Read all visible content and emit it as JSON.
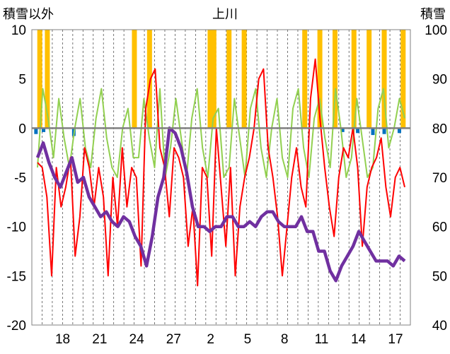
{
  "chart_data": {
    "type": "line",
    "title": "上川",
    "left_axis_label": "積雪以外",
    "right_axis_label": "積雪",
    "left_ylim": [
      -20,
      10
    ],
    "left_yticks": [
      "10",
      "5",
      "0",
      "-5",
      "-10",
      "-15",
      "-20"
    ],
    "right_ylim": [
      40,
      100
    ],
    "right_yticks": [
      "100",
      "90",
      "80",
      "70",
      "60",
      "50",
      "40"
    ],
    "x_tick_labels": [
      "18",
      "21",
      "24",
      "27",
      "2",
      "5",
      "8",
      "11",
      "14",
      "17"
    ],
    "x_tick_index": [
      2,
      5,
      8,
      11,
      14,
      17,
      20,
      23,
      26,
      29
    ],
    "grid": "dashed vertical daily lines, solid zero line",
    "series": [
      {
        "color": "#ff0000",
        "axis": "left",
        "values": [
          -3.5,
          -4,
          -7,
          -15,
          -4,
          -8,
          -6,
          -3,
          -13,
          -9,
          -2,
          -4,
          -8,
          -4,
          -7,
          -15,
          -5,
          -10,
          -2,
          -8,
          -4,
          -5,
          -14,
          2,
          5,
          6,
          -2,
          -4,
          -9,
          -2,
          -3,
          -5,
          -12,
          -8,
          -16,
          -4,
          -5,
          -13,
          0,
          -6,
          -12,
          -4,
          -15,
          -8,
          -5,
          -3,
          0,
          5,
          6,
          -2,
          -5,
          -9,
          -15,
          -10,
          -5,
          -2,
          -6,
          -8,
          3,
          7,
          1,
          -4,
          -8,
          -11,
          -5,
          -2,
          -3,
          0,
          -4,
          -12,
          -6,
          -4,
          -3,
          -1,
          -6,
          -9,
          -5,
          -4,
          -6
        ]
      },
      {
        "color": "#92d050",
        "axis": "left",
        "values": [
          -4,
          4,
          1,
          -3,
          3,
          -1,
          -4,
          0,
          3,
          -2,
          -4,
          1,
          4,
          -1,
          -4,
          -5,
          0,
          2,
          -3,
          -3,
          3,
          -1,
          -4,
          4,
          -5,
          -2,
          3,
          -1,
          -5,
          1,
          4,
          -2,
          -5,
          1,
          2,
          -5,
          -4,
          3,
          -1,
          -5,
          2,
          4,
          -2,
          -5,
          0,
          3,
          -3,
          -5,
          2,
          4,
          -2,
          -5,
          1,
          3,
          -1,
          -4,
          4,
          0,
          -5,
          -3,
          3,
          -1,
          -5,
          -4,
          2,
          4,
          -2,
          0,
          3,
          1
        ]
      },
      {
        "color": "#7030a0",
        "axis": "right",
        "values": [
          74,
          77,
          73,
          70,
          68,
          71,
          74,
          69,
          70,
          66,
          64,
          62,
          63,
          61,
          60,
          62,
          61,
          58,
          56,
          52,
          58,
          66,
          70,
          80,
          79,
          76,
          71,
          64,
          60,
          60,
          59,
          60,
          60,
          62,
          62,
          60,
          60,
          61,
          60,
          62,
          63,
          63,
          61,
          60,
          60,
          60,
          62,
          59,
          59,
          55,
          55,
          51,
          49,
          52,
          54,
          56,
          59,
          57,
          55,
          53,
          53,
          53,
          52,
          54,
          53
        ]
      }
    ],
    "snow_accum_color": "#ffc000",
    "snow_accum_bars": [
      [
        0.02,
        10
      ],
      [
        0.04,
        10
      ],
      [
        0.27,
        10
      ],
      [
        0.31,
        10
      ],
      [
        0.47,
        10
      ],
      [
        0.48,
        10
      ],
      [
        0.52,
        10
      ],
      [
        0.56,
        10
      ],
      [
        0.72,
        10
      ],
      [
        0.76,
        10
      ],
      [
        0.8,
        10
      ],
      [
        0.85,
        10
      ],
      [
        0.89,
        10
      ],
      [
        0.93,
        10
      ],
      [
        0.98,
        10
      ]
    ],
    "snow_depth_change_color": "#0070c0",
    "snow_depth_change_bars": [
      [
        0.01,
        -0.6
      ],
      [
        0.03,
        -0.4
      ],
      [
        0.11,
        -0.8
      ],
      [
        0.82,
        -0.4
      ],
      [
        0.86,
        -0.5
      ],
      [
        0.9,
        -0.7
      ],
      [
        0.93,
        -0.6
      ],
      [
        0.97,
        -0.5
      ]
    ]
  }
}
